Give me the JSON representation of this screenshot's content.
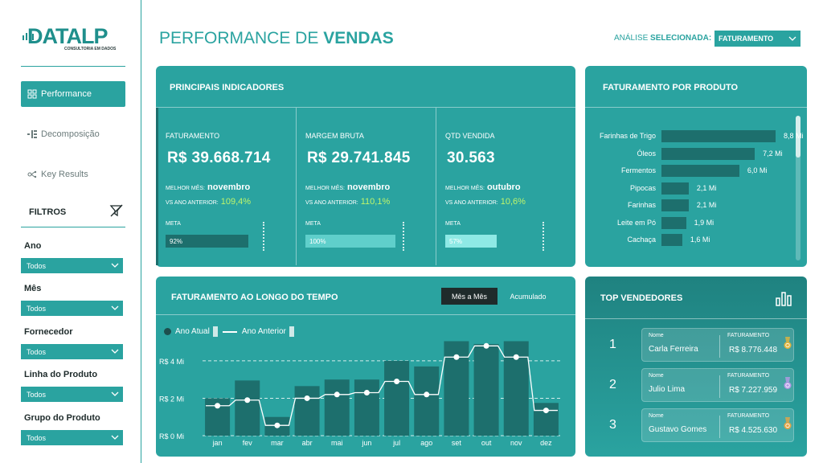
{
  "logo": {
    "text": "DATALP",
    "subtitle": "CONSULTORIA EM DADOS"
  },
  "nav": [
    {
      "label": "Performance",
      "icon": "grid-icon",
      "active": true
    },
    {
      "label": "Decomposição",
      "icon": "tree-icon",
      "active": false
    },
    {
      "label": "Key Results",
      "icon": "key-results-icon",
      "active": false
    }
  ],
  "filters": {
    "title": "FILTROS",
    "items": [
      {
        "label": "Ano",
        "value": "Todos"
      },
      {
        "label": "Mês",
        "value": "Todos"
      },
      {
        "label": "Fornecedor",
        "value": "Todos"
      },
      {
        "label": "Linha do Produto",
        "value": "Todos"
      },
      {
        "label": "Grupo do Produto",
        "value": "Todos"
      }
    ]
  },
  "header": {
    "title_light": "PERFORMANCE DE ",
    "title_bold": "VENDAS",
    "analysis_label": "ANÁLISE ",
    "analysis_label_bold": "SELECIONADA:",
    "analysis_value": "FATURAMENTO"
  },
  "kpis": {
    "title": "PRINCIPAIS INDICADORES",
    "items": [
      {
        "name": "FATURAMENTO",
        "value": "R$ 39.668.714",
        "best_label": "MELHOR MÊS:",
        "best_month": "novembro",
        "vs_label": "VS ANO ANTERIOR:",
        "vs_value": "109,4%",
        "meta_label": "META",
        "meta_pct": 92,
        "meta_text": "92%",
        "bar_color": "#1d6f6d"
      },
      {
        "name": "MARGEM BRUTA",
        "value": "R$ 29.741.845",
        "best_label": "MELHOR MÊS:",
        "best_month": "novembro",
        "vs_label": "VS ANO ANTERIOR:",
        "vs_value": "110,1%",
        "meta_label": "META",
        "meta_pct": 100,
        "meta_text": "100%",
        "bar_color": "#5fcfcb"
      },
      {
        "name": "QTD VENDIDA",
        "value": "30.563",
        "best_label": "MELHOR MÊS:",
        "best_month": "outubro",
        "vs_label": "VS ANO ANTERIOR:",
        "vs_value": "10,6%",
        "meta_label": "META",
        "meta_pct": 57,
        "meta_text": "57%",
        "bar_color": "#8ee9e5"
      }
    ]
  },
  "produto": {
    "title": "FATURAMENTO POR PRODUTO",
    "items": [
      {
        "label": "Farinhas de Trigo",
        "value": 8.8,
        "text": "8,8 Mi"
      },
      {
        "label": "Óleos",
        "value": 7.2,
        "text": "7,2 Mi"
      },
      {
        "label": "Fermentos",
        "value": 6.0,
        "text": "6,0 Mi"
      },
      {
        "label": "Pipocas",
        "value": 2.1,
        "text": "2,1 Mi"
      },
      {
        "label": "Farinhas",
        "value": 2.1,
        "text": "2,1 Mi"
      },
      {
        "label": "Leite em Pó",
        "value": 1.9,
        "text": "1,9 Mi"
      },
      {
        "label": "Cachaça",
        "value": 1.6,
        "text": "1,6 Mi"
      }
    ]
  },
  "tempo": {
    "title": "FATURAMENTO AO LONGO DO TEMPO",
    "toggle_active": "Mês a Mês",
    "toggle_inactive": "Acumulado",
    "legend_current": "Ano Atual",
    "legend_previous": "Ano Anterior"
  },
  "chart_data": {
    "type": "bar",
    "categories": [
      "jan",
      "fev",
      "mar",
      "abr",
      "mai",
      "jun",
      "jul",
      "ago",
      "set",
      "out",
      "nov",
      "dez"
    ],
    "series": [
      {
        "name": "Ano Atual",
        "values": [
          2.0,
          2.95,
          1.0,
          2.65,
          3.0,
          3.0,
          4.0,
          3.7,
          5.05,
          4.9,
          5.05,
          1.75
        ]
      },
      {
        "name": "Ano Anterior",
        "values": [
          1.6,
          1.9,
          0.55,
          2.0,
          2.2,
          2.3,
          2.9,
          2.2,
          4.2,
          4.8,
          4.2,
          1.35
        ]
      }
    ],
    "y_ticks": [
      "R$ 0 Mi",
      "R$ 2 Mi",
      "R$ 4 Mi"
    ],
    "ylim": [
      0,
      5.5
    ],
    "colors": {
      "bar": "#1d6f6d",
      "line": "#ffffff"
    }
  },
  "vendedores": {
    "title": "TOP VENDEDORES",
    "name_label": "Nome",
    "value_label": "FATURAMENTO",
    "items": [
      {
        "rank": "1",
        "name": "Carla Ferreira",
        "value": "R$ 8.776.448",
        "medal": "#e2b43c"
      },
      {
        "rank": "2",
        "name": "Julio Lima",
        "value": "R$ 7.227.959",
        "medal": "#b49ae6"
      },
      {
        "rank": "3",
        "name": "Gustavo Gomes",
        "value": "R$ 4.525.630",
        "medal": "#e6a545"
      }
    ]
  }
}
